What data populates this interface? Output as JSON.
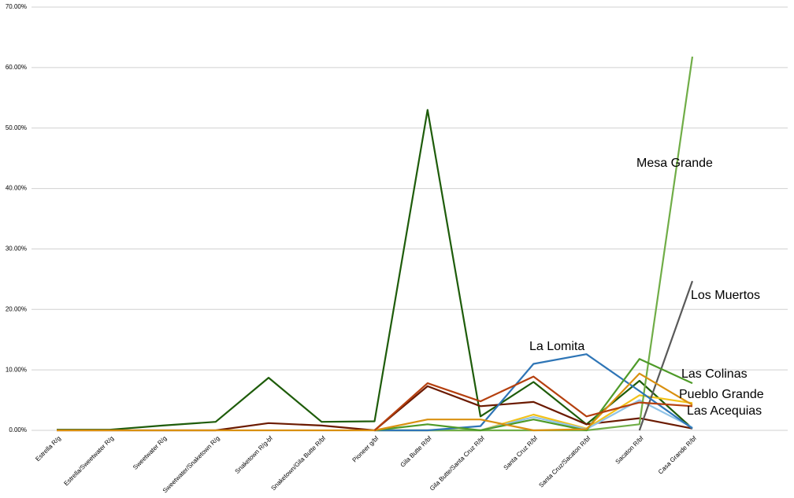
{
  "chart_data": {
    "type": "line",
    "categories": [
      "Estrella R/g",
      "Estrella/Sweetwater R/g",
      "Sweetwater R/g",
      "Sweetwater/Snaketown R/g",
      "Snaketown R/g-bf",
      "Snaketown/Gila Butte R/bf",
      "Pioneer g/bf",
      "Gila Butte R/bf",
      "Gila Butte/Santa Cruz R/bf",
      "Santa Cruz R/bf",
      "Santa Cruz/Sacaton R/bf",
      "Sacaton R/bf",
      "Casa Grande R/bf"
    ],
    "ylim": [
      0,
      70
    ],
    "yticks": [
      {
        "value": 0,
        "label": "0.00%"
      },
      {
        "value": 10,
        "label": "10.00%"
      },
      {
        "value": 20,
        "label": "20.00%"
      },
      {
        "value": 30,
        "label": "30.00%"
      },
      {
        "value": 40,
        "label": "40.00%"
      },
      {
        "value": 50,
        "label": "50.00%"
      },
      {
        "value": 60,
        "label": "60.00%"
      },
      {
        "value": 70,
        "label": "70.00%"
      }
    ],
    "grid": true,
    "series": [
      {
        "color": "#1e5c0a",
        "values": [
          0.1,
          0.1,
          0.8,
          1.4,
          8.7,
          1.4,
          1.5,
          53.0,
          2.3,
          8.0,
          1.0,
          8.2,
          0.3
        ]
      },
      {
        "color": "#6b1a00",
        "values": [
          0,
          0,
          0,
          0,
          1.2,
          0.8,
          0,
          7.3,
          4.0,
          4.7,
          1.0,
          2.0,
          0.3
        ]
      },
      {
        "color": "#f2c21b",
        "values": [
          null,
          null,
          null,
          null,
          null,
          null,
          0,
          0,
          0,
          2.6,
          0.3,
          5.8,
          4.5
        ]
      },
      {
        "color": "#8fc3e8",
        "values": [
          null,
          null,
          null,
          null,
          null,
          null,
          0,
          0,
          0,
          2.2,
          0.2,
          5.0,
          0.5
        ]
      },
      {
        "name": "Mesa Grande",
        "color": "#70ad47",
        "values": [
          null,
          null,
          null,
          null,
          null,
          null,
          0,
          0,
          0,
          0,
          0,
          1.0,
          61.8
        ]
      },
      {
        "name": "Los Muertos",
        "color": "#595959",
        "values": [
          null,
          null,
          null,
          null,
          null,
          null,
          null,
          null,
          null,
          null,
          null,
          0,
          24.7
        ]
      },
      {
        "name": "La Lomita",
        "color": "#2e75b6",
        "values": [
          null,
          null,
          null,
          null,
          null,
          null,
          0,
          0,
          0.7,
          11.0,
          12.6,
          6.5,
          0.3
        ]
      },
      {
        "name": "Las Colinas",
        "color": "#4e9a28",
        "values": [
          null,
          null,
          null,
          null,
          null,
          null,
          0,
          1.0,
          0,
          1.8,
          0,
          11.8,
          7.8
        ]
      },
      {
        "name": "Pueblo Grande",
        "color": "#d99010",
        "values": [
          0,
          0,
          0,
          0,
          0,
          0,
          0,
          1.8,
          1.8,
          0,
          0.2,
          9.4,
          4.2
        ]
      },
      {
        "name": "Las Acequias",
        "color": "#b5400f",
        "values": [
          null,
          null,
          null,
          null,
          null,
          null,
          0,
          7.8,
          4.8,
          8.9,
          2.3,
          4.6,
          4.0
        ]
      }
    ]
  }
}
